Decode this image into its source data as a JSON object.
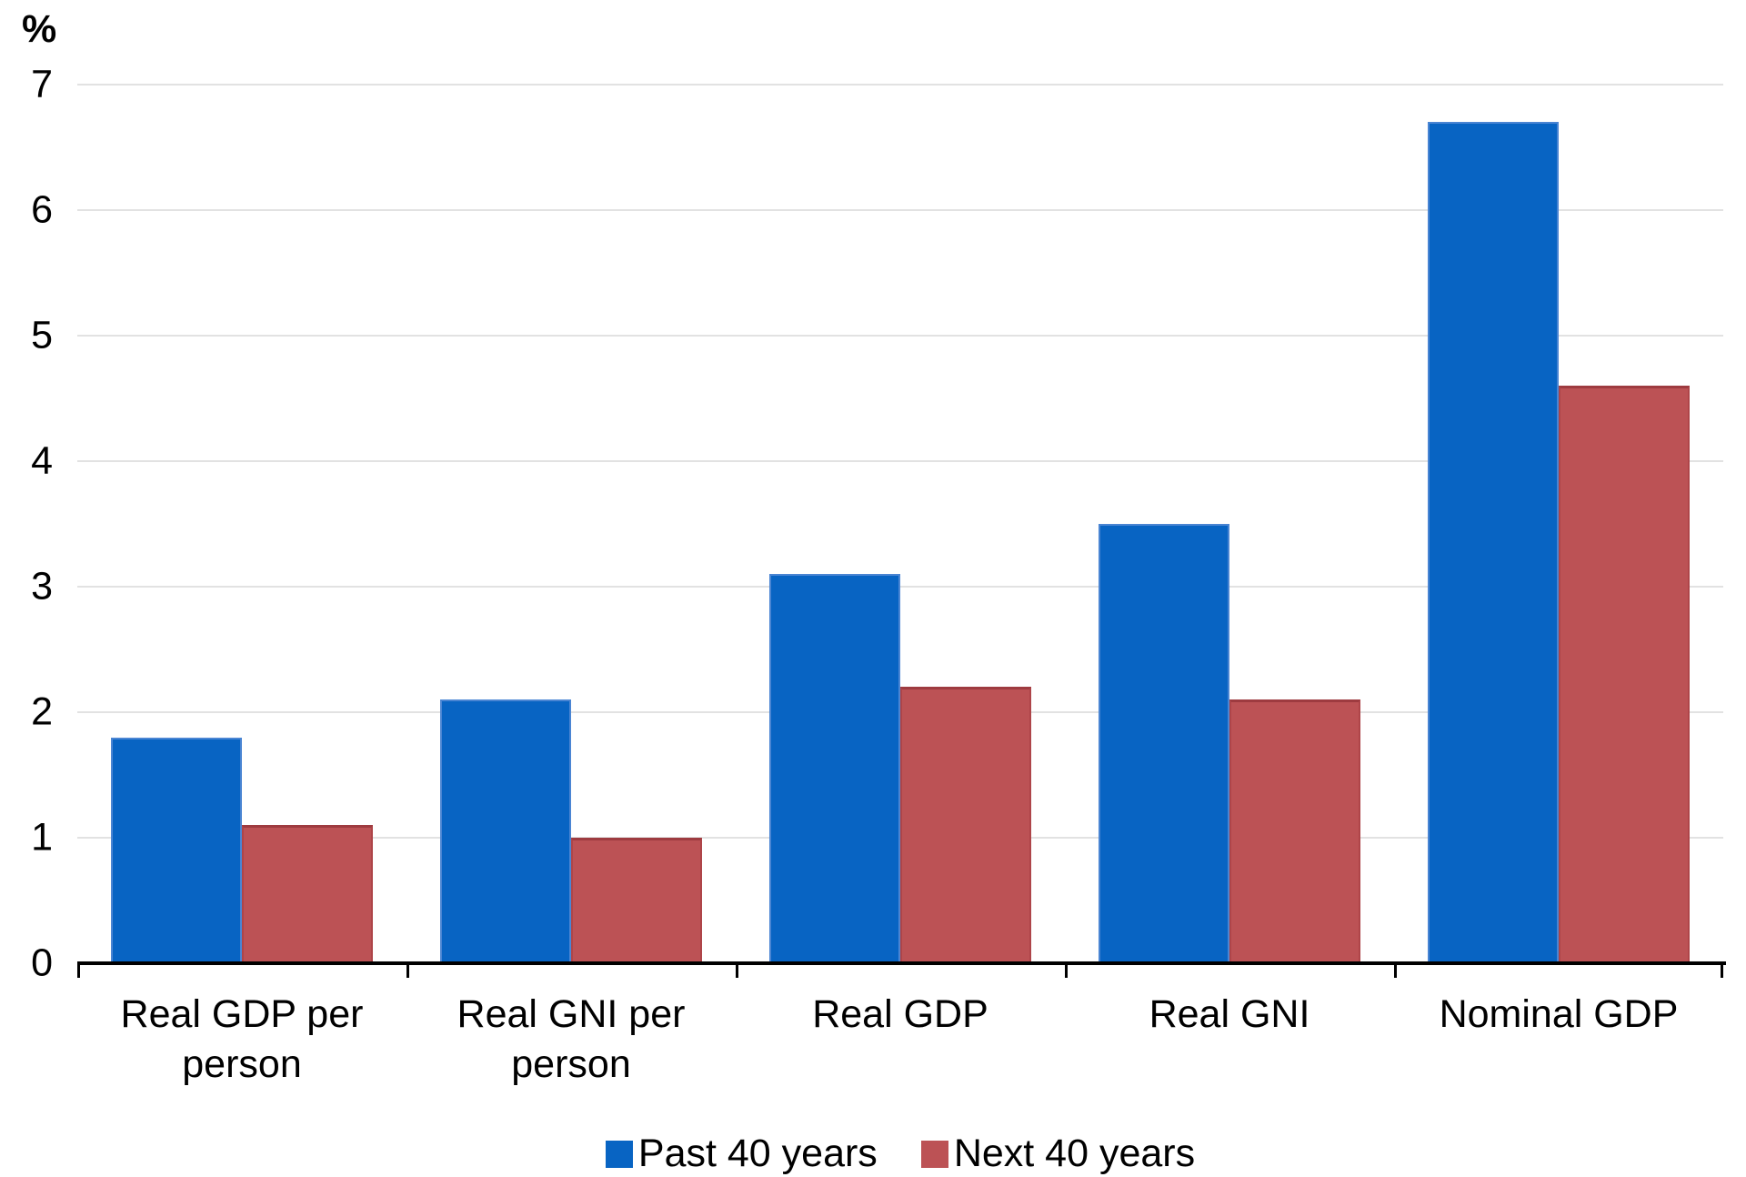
{
  "chart_data": {
    "type": "bar",
    "title": "",
    "ylabel": "%",
    "xlabel": "",
    "ylim": [
      0,
      7
    ],
    "yticks": [
      0,
      1,
      2,
      3,
      4,
      5,
      6,
      7
    ],
    "grid": true,
    "legend_position": "bottom",
    "categories": [
      "Real GDP per person",
      "Real GNI per person",
      "Real GDP",
      "Real GNI",
      "Nominal GDP"
    ],
    "series": [
      {
        "name": "Past 40 years",
        "color": "#0864C3",
        "values": [
          1.8,
          2.1,
          3.1,
          3.5,
          6.7
        ]
      },
      {
        "name": "Next 40 years",
        "color": "#BC5255",
        "values": [
          1.1,
          1.0,
          2.2,
          2.1,
          4.6
        ]
      }
    ],
    "colors": {
      "gridline": "#E2E2E2",
      "axis": "#000000",
      "text": "#000000",
      "background": "#FFFFFF"
    }
  }
}
